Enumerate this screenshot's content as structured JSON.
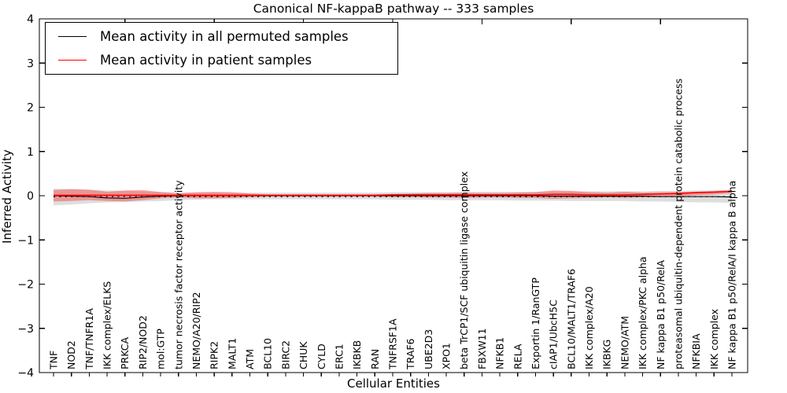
{
  "figure": {
    "title": "Canonical NF-kappaB pathway -- 333 samples",
    "xlabel": "Cellular Entities",
    "ylabel": "Inferred Activity",
    "legend": {
      "permuted_label": "Mean activity in all permuted samples",
      "patient_label": "Mean activity in patient samples"
    },
    "colors": {
      "permuted_line": "#000000",
      "patient_line": "#ff0000",
      "permuted_band": "#000000",
      "patient_band": "#ff0000",
      "frame": "#000000"
    }
  },
  "chart_data": {
    "type": "line",
    "title": "Canonical NF-kappaB pathway -- 333 samples",
    "xlabel": "Cellular Entities",
    "ylabel": "Inferred Activity",
    "ylim": [
      -4,
      4
    ],
    "yticks": [
      -4,
      -3,
      -2,
      -1,
      0,
      1,
      2,
      3,
      4
    ],
    "grid": false,
    "legend_position": "upper left",
    "top_tick_indices": [
      4,
      9,
      14,
      19,
      24,
      29,
      34
    ],
    "categories": [
      "TNF",
      "NOD2",
      "TNF/TNFR1A",
      "IKK complex/ELKS",
      "PRKCA",
      "RIP2/NOD2",
      "mol:GTP",
      "tumor necrosis factor receptor activity",
      "NEMO/A20/RIP2",
      "RIPK2",
      "MALT1",
      "ATM",
      "BCL10",
      "BIRC2",
      "CHUK",
      "CYLD",
      "ERC1",
      "IKBKB",
      "RAN",
      "TNFRSF1A",
      "TRAF6",
      "UBE2D3",
      "XPO1",
      "beta TrCP1/SCF ubiquitin ligase complex",
      "FBXW11",
      "NFKB1",
      "RELA",
      "Exportin 1/RanGTP",
      "cIAP1/UbcH5C",
      "BCL10/MALT1/TRAF6",
      "IKK complex/A20",
      "IKBKG",
      "NEMO/ATM",
      "IKK complex/PKC alpha",
      "NF kappa B1 p50/RelA",
      "proteasomal ubiquitin-dependent protein catabolic process",
      "NFKBIA",
      "IKK complex",
      "NF kappa B1 p50/RelA/I kappa B alpha"
    ],
    "series": [
      {
        "name": "Mean activity in all permuted samples",
        "color": "#000000",
        "style": "solid",
        "values": [
          0,
          -0.01,
          -0.02,
          -0.05,
          -0.06,
          -0.03,
          -0.01,
          0,
          0,
          0,
          0,
          0,
          0,
          0,
          0,
          0,
          0,
          0,
          0,
          0,
          0,
          0,
          0,
          0,
          0,
          0,
          0,
          0,
          -0.01,
          -0.01,
          -0.01,
          -0.01,
          -0.01,
          -0.01,
          -0.02,
          -0.02,
          -0.02,
          -0.02,
          -0.03
        ]
      },
      {
        "name": "Mean activity in patient samples",
        "color": "#ff0000",
        "style": "solid",
        "values": [
          0.01,
          0.01,
          0.01,
          0.01,
          0.01,
          0.01,
          0.01,
          0.01,
          0.01,
          0.01,
          0.01,
          0.01,
          0.01,
          0.01,
          0.01,
          0.01,
          0.01,
          0.01,
          0.01,
          0.02,
          0.02,
          0.02,
          0.02,
          0.02,
          0.02,
          0.02,
          0.02,
          0.02,
          0.03,
          0.03,
          0.02,
          0.02,
          0.02,
          0.03,
          0.04,
          0.05,
          0.07,
          0.08,
          0.1
        ]
      }
    ],
    "bands": [
      {
        "name": "Permuted samples range",
        "color": "#000000",
        "opacity": 0.13,
        "upper": [
          0.16,
          0.15,
          0.13,
          0.12,
          0.11,
          0.1,
          0.09,
          0.08,
          0.07,
          0.07,
          0.07,
          0.07,
          0.07,
          0.07,
          0.07,
          0.07,
          0.07,
          0.07,
          0.07,
          0.08,
          0.08,
          0.08,
          0.08,
          0.08,
          0.09,
          0.09,
          0.09,
          0.09,
          0.1,
          0.1,
          0.1,
          0.1,
          0.1,
          0.1,
          0.11,
          0.11,
          0.12,
          0.12,
          0.12
        ],
        "lower": [
          -0.22,
          -0.2,
          -0.17,
          -0.15,
          -0.14,
          -0.13,
          -0.12,
          -0.1,
          -0.09,
          -0.08,
          -0.08,
          -0.08,
          -0.08,
          -0.08,
          -0.08,
          -0.08,
          -0.08,
          -0.08,
          -0.08,
          -0.09,
          -0.09,
          -0.09,
          -0.1,
          -0.1,
          -0.1,
          -0.1,
          -0.11,
          -0.11,
          -0.11,
          -0.12,
          -0.12,
          -0.12,
          -0.12,
          -0.13,
          -0.13,
          -0.14,
          -0.15,
          -0.15,
          -0.16
        ]
      },
      {
        "name": "Patient samples range",
        "color": "#ff0000",
        "opacity": 0.33,
        "upper": [
          0.13,
          0.15,
          0.14,
          0.09,
          0.12,
          0.13,
          0.08,
          0.05,
          0.08,
          0.09,
          0.08,
          0.05,
          0.03,
          0.03,
          0.03,
          0.03,
          0.03,
          0.03,
          0.03,
          0.04,
          0.05,
          0.06,
          0.06,
          0.07,
          0.06,
          0.06,
          0.07,
          0.08,
          0.12,
          0.11,
          0.08,
          0.07,
          0.09,
          0.07,
          0.08,
          0.08,
          0.09,
          0.11,
          0.13
        ],
        "lower": [
          -0.13,
          -0.12,
          -0.1,
          -0.12,
          -0.13,
          -0.1,
          -0.06,
          -0.04,
          -0.06,
          -0.06,
          -0.05,
          -0.03,
          -0.02,
          -0.02,
          -0.02,
          -0.02,
          -0.02,
          -0.02,
          -0.02,
          -0.03,
          -0.03,
          -0.04,
          -0.04,
          -0.05,
          -0.04,
          -0.04,
          -0.05,
          -0.05,
          -0.07,
          -0.06,
          -0.05,
          -0.04,
          -0.05,
          -0.04,
          -0.03,
          -0.01,
          0.01,
          0.03,
          0.06
        ]
      }
    ],
    "zero_reference_line": {
      "y": 0,
      "style": "dotted",
      "color": "#000000"
    }
  }
}
